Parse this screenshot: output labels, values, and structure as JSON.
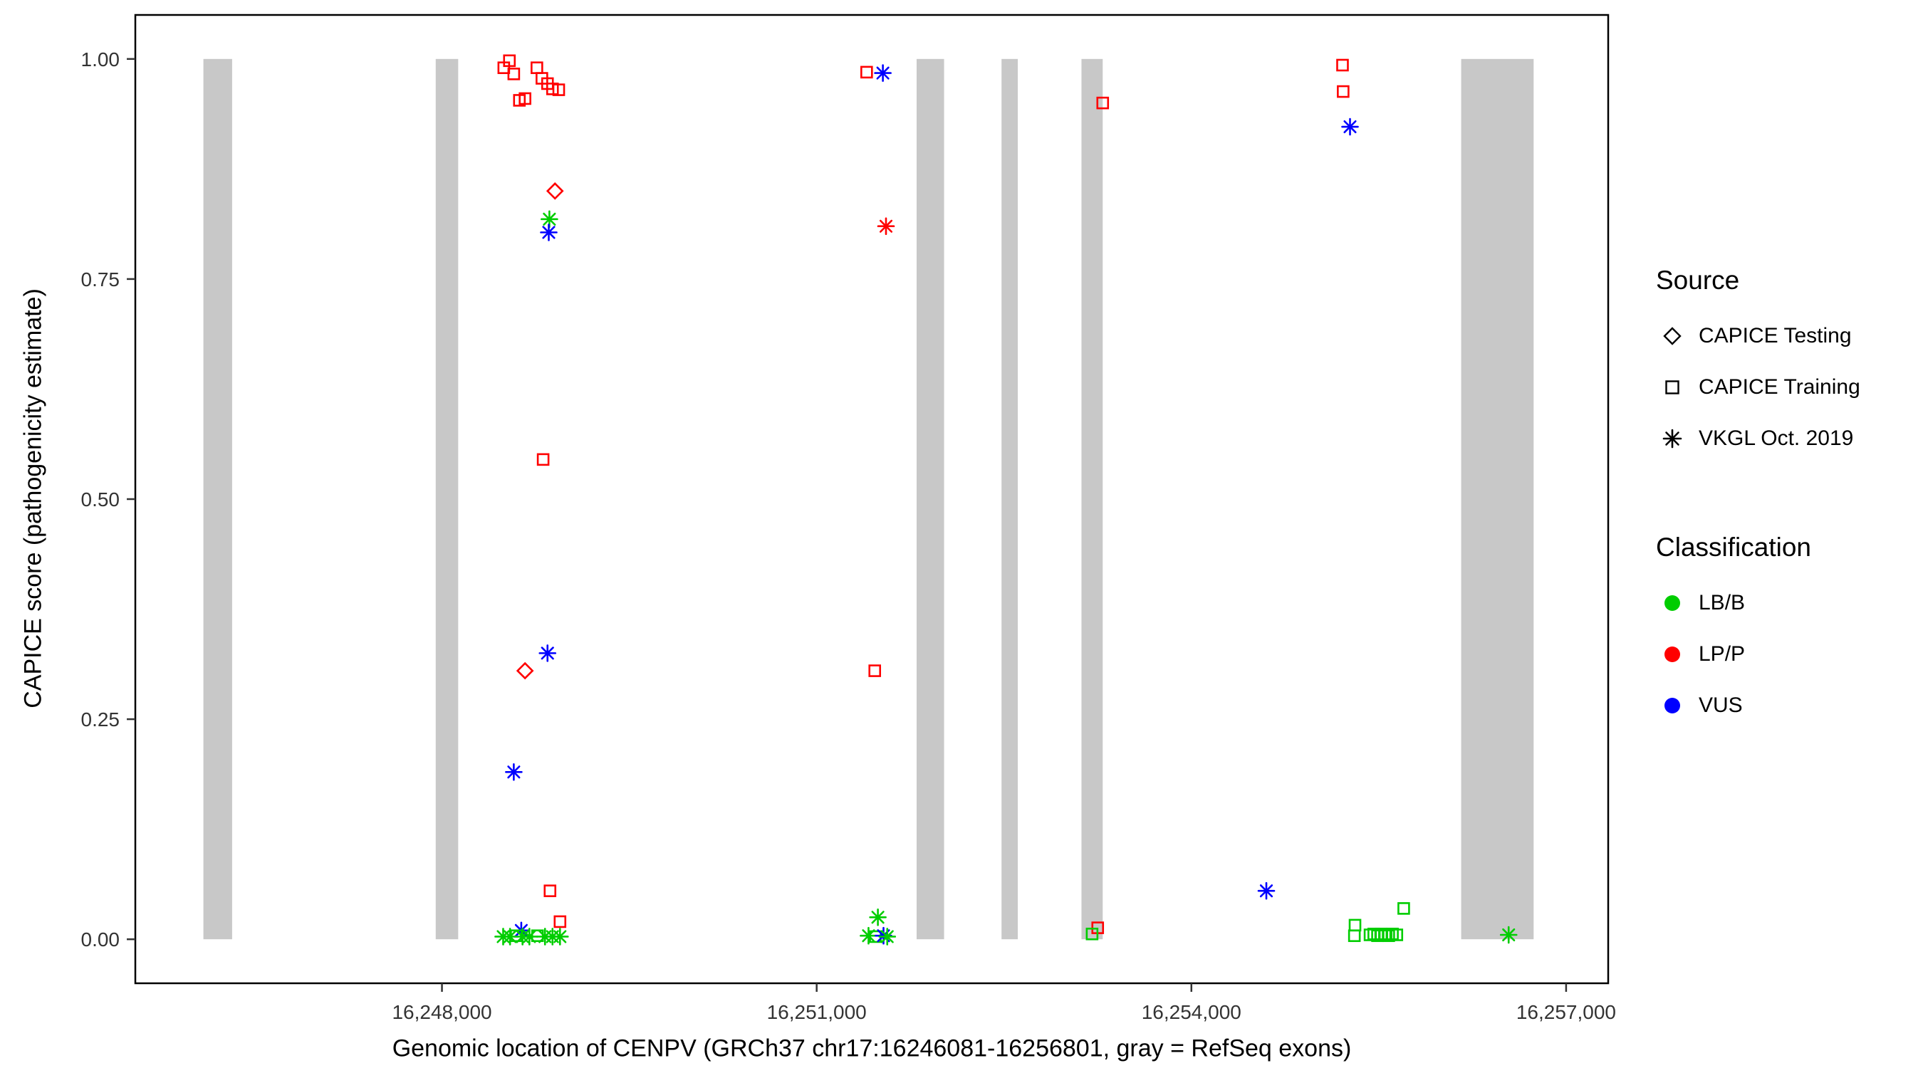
{
  "chart_data": {
    "type": "scatter",
    "title": "",
    "xlabel": "Genomic location of CENPV (GRCh37 chr17:16246081-16256801, gray = RefSeq exons)",
    "ylabel": "CAPICE score (pathogenicity estimate)",
    "x_domain": [
      16245545,
      16257337
    ],
    "y_domain": [
      -0.05,
      1.05
    ],
    "x_ticks": [
      {
        "value": 16248000,
        "label": "16,248,000"
      },
      {
        "value": 16251000,
        "label": "16,251,000"
      },
      {
        "value": 16254000,
        "label": "16,254,000"
      },
      {
        "value": 16257000,
        "label": "16,257,000"
      }
    ],
    "y_ticks": [
      {
        "value": 0.0,
        "label": "0.00"
      },
      {
        "value": 0.25,
        "label": "0.25"
      },
      {
        "value": 0.5,
        "label": "0.50"
      },
      {
        "value": 0.75,
        "label": "0.75"
      },
      {
        "value": 1.0,
        "label": "1.00"
      }
    ],
    "exon_color": "#C8C8C8",
    "exon_bars": [
      {
        "start": 16246090,
        "end": 16246320
      },
      {
        "start": 16247950,
        "end": 16248130
      },
      {
        "start": 16251800,
        "end": 16252020
      },
      {
        "start": 16252480,
        "end": 16252610
      },
      {
        "start": 16253120,
        "end": 16253290
      },
      {
        "start": 16256160,
        "end": 16256740
      }
    ],
    "colors": {
      "LB/B": "#00CD00",
      "LP/P": "#FF0000",
      "VUS": "#0000FF"
    },
    "shapes": {
      "CAPICE Testing": "diamond",
      "CAPICE Training": "square",
      "VKGL Oct. 2019": "asterisk"
    },
    "points": [
      {
        "x": 16248495,
        "y": 0.99,
        "source": "CAPICE Training",
        "classification": "LP/P"
      },
      {
        "x": 16248540,
        "y": 0.998,
        "source": "CAPICE Training",
        "classification": "LP/P"
      },
      {
        "x": 16248575,
        "y": 0.983,
        "source": "CAPICE Training",
        "classification": "LP/P"
      },
      {
        "x": 16248620,
        "y": 0.953,
        "source": "CAPICE Training",
        "classification": "LP/P"
      },
      {
        "x": 16248665,
        "y": 0.955,
        "source": "CAPICE Training",
        "classification": "LP/P"
      },
      {
        "x": 16248760,
        "y": 0.99,
        "source": "CAPICE Training",
        "classification": "LP/P"
      },
      {
        "x": 16248800,
        "y": 0.978,
        "source": "CAPICE Training",
        "classification": "LP/P"
      },
      {
        "x": 16248845,
        "y": 0.972,
        "source": "CAPICE Training",
        "classification": "LP/P"
      },
      {
        "x": 16248885,
        "y": 0.966,
        "source": "CAPICE Training",
        "classification": "LP/P"
      },
      {
        "x": 16248935,
        "y": 0.965,
        "source": "CAPICE Training",
        "classification": "LP/P"
      },
      {
        "x": 16248905,
        "y": 0.85,
        "source": "CAPICE Testing",
        "classification": "LP/P"
      },
      {
        "x": 16248860,
        "y": 0.818,
        "source": "VKGL Oct. 2019",
        "classification": "LB/B"
      },
      {
        "x": 16248855,
        "y": 0.803,
        "source": "VKGL Oct. 2019",
        "classification": "VUS"
      },
      {
        "x": 16248810,
        "y": 0.545,
        "source": "CAPICE Training",
        "classification": "LP/P"
      },
      {
        "x": 16248845,
        "y": 0.325,
        "source": "VKGL Oct. 2019",
        "classification": "VUS"
      },
      {
        "x": 16248665,
        "y": 0.305,
        "source": "CAPICE Testing",
        "classification": "LP/P"
      },
      {
        "x": 16248575,
        "y": 0.19,
        "source": "VKGL Oct. 2019",
        "classification": "VUS"
      },
      {
        "x": 16248865,
        "y": 0.055,
        "source": "CAPICE Training",
        "classification": "LP/P"
      },
      {
        "x": 16248945,
        "y": 0.02,
        "source": "CAPICE Training",
        "classification": "LP/P"
      },
      {
        "x": 16248635,
        "y": 0.01,
        "source": "VKGL Oct. 2019",
        "classification": "VUS"
      },
      {
        "x": 16248490,
        "y": 0.003,
        "source": "VKGL Oct. 2019",
        "classification": "LB/B"
      },
      {
        "x": 16248545,
        "y": 0.003,
        "source": "VKGL Oct. 2019",
        "classification": "LB/B"
      },
      {
        "x": 16248595,
        "y": 0.004,
        "source": "CAPICE Training",
        "classification": "LB/B"
      },
      {
        "x": 16248645,
        "y": 0.003,
        "source": "VKGL Oct. 2019",
        "classification": "LB/B"
      },
      {
        "x": 16248700,
        "y": 0.003,
        "source": "VKGL Oct. 2019",
        "classification": "LB/B"
      },
      {
        "x": 16248765,
        "y": 0.004,
        "source": "CAPICE Training",
        "classification": "LB/B"
      },
      {
        "x": 16248825,
        "y": 0.003,
        "source": "VKGL Oct. 2019",
        "classification": "LB/B"
      },
      {
        "x": 16248885,
        "y": 0.003,
        "source": "VKGL Oct. 2019",
        "classification": "LB/B"
      },
      {
        "x": 16248945,
        "y": 0.003,
        "source": "VKGL Oct. 2019",
        "classification": "LB/B"
      },
      {
        "x": 16251400,
        "y": 0.985,
        "source": "CAPICE Training",
        "classification": "LP/P"
      },
      {
        "x": 16251530,
        "y": 0.984,
        "source": "VKGL Oct. 2019",
        "classification": "VUS"
      },
      {
        "x": 16251555,
        "y": 0.81,
        "source": "VKGL Oct. 2019",
        "classification": "LP/P"
      },
      {
        "x": 16251465,
        "y": 0.305,
        "source": "CAPICE Training",
        "classification": "LP/P"
      },
      {
        "x": 16251490,
        "y": 0.025,
        "source": "VKGL Oct. 2019",
        "classification": "LB/B"
      },
      {
        "x": 16251415,
        "y": 0.004,
        "source": "VKGL Oct. 2019",
        "classification": "LB/B"
      },
      {
        "x": 16251470,
        "y": 0.003,
        "source": "CAPICE Training",
        "classification": "LB/B"
      },
      {
        "x": 16251535,
        "y": 0.004,
        "source": "VKGL Oct. 2019",
        "classification": "VUS"
      },
      {
        "x": 16251565,
        "y": 0.003,
        "source": "VKGL Oct. 2019",
        "classification": "LB/B"
      },
      {
        "x": 16253290,
        "y": 0.95,
        "source": "CAPICE Training",
        "classification": "LP/P"
      },
      {
        "x": 16253250,
        "y": 0.013,
        "source": "CAPICE Training",
        "classification": "LP/P"
      },
      {
        "x": 16253205,
        "y": 0.006,
        "source": "CAPICE Training",
        "classification": "LB/B"
      },
      {
        "x": 16254600,
        "y": 0.055,
        "source": "VKGL Oct. 2019",
        "classification": "VUS"
      },
      {
        "x": 16255210,
        "y": 0.993,
        "source": "CAPICE Training",
        "classification": "LP/P"
      },
      {
        "x": 16255215,
        "y": 0.963,
        "source": "CAPICE Training",
        "classification": "LP/P"
      },
      {
        "x": 16255270,
        "y": 0.923,
        "source": "VKGL Oct. 2019",
        "classification": "VUS"
      },
      {
        "x": 16255310,
        "y": 0.016,
        "source": "CAPICE Training",
        "classification": "LB/B"
      },
      {
        "x": 16255305,
        "y": 0.004,
        "source": "CAPICE Training",
        "classification": "LB/B"
      },
      {
        "x": 16255430,
        "y": 0.005,
        "source": "CAPICE Training",
        "classification": "LB/B"
      },
      {
        "x": 16255460,
        "y": 0.006,
        "source": "CAPICE Training",
        "classification": "LB/B"
      },
      {
        "x": 16255490,
        "y": 0.004,
        "source": "CAPICE Training",
        "classification": "LB/B"
      },
      {
        "x": 16255520,
        "y": 0.006,
        "source": "CAPICE Training",
        "classification": "LB/B"
      },
      {
        "x": 16255550,
        "y": 0.005,
        "source": "CAPICE Training",
        "classification": "LB/B"
      },
      {
        "x": 16255580,
        "y": 0.004,
        "source": "CAPICE Training",
        "classification": "LB/B"
      },
      {
        "x": 16255610,
        "y": 0.006,
        "source": "CAPICE Training",
        "classification": "LB/B"
      },
      {
        "x": 16255645,
        "y": 0.005,
        "source": "CAPICE Training",
        "classification": "LB/B"
      },
      {
        "x": 16255700,
        "y": 0.035,
        "source": "CAPICE Training",
        "classification": "LB/B"
      },
      {
        "x": 16256540,
        "y": 0.005,
        "source": "VKGL Oct. 2019",
        "classification": "LB/B"
      }
    ],
    "legend": {
      "source": {
        "title": "Source",
        "items": [
          {
            "label": "CAPICE Testing",
            "shape": "diamond"
          },
          {
            "label": "CAPICE Training",
            "shape": "square"
          },
          {
            "label": "VKGL Oct. 2019",
            "shape": "asterisk"
          }
        ]
      },
      "classification": {
        "title": "Classification",
        "items": [
          {
            "label": "LB/B",
            "color": "#00CD00"
          },
          {
            "label": "LP/P",
            "color": "#FF0000"
          },
          {
            "label": "VUS",
            "color": "#0000FF"
          }
        ]
      }
    }
  }
}
